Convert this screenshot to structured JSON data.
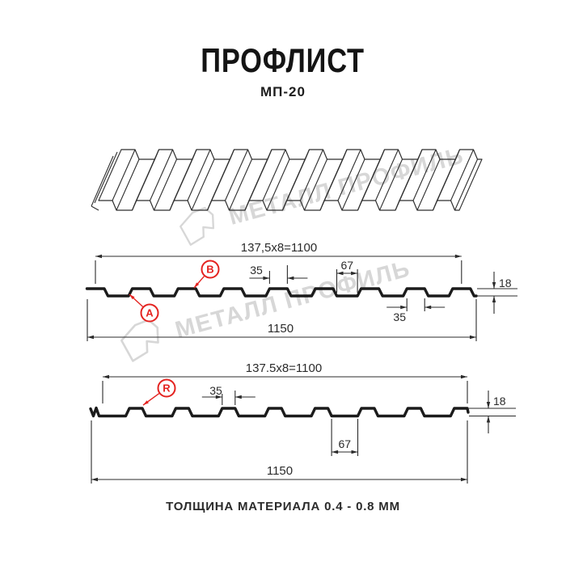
{
  "header": {
    "title": "ПРОФЛИСТ",
    "subtitle": "МП-20"
  },
  "watermark": {
    "brand_text": "МЕТАЛЛ ПРОФИЛЬ",
    "color": "#d7d7d7"
  },
  "diagram": {
    "profile_top": {
      "span_dim": "137,5x8=1100",
      "rib_top_dim": "35",
      "valley_dim": "67",
      "height_dim": "18",
      "rib_bottom_dim": "35",
      "total_width_dim": "1150",
      "label_a": "A",
      "label_b": "B"
    },
    "profile_bottom": {
      "span_dim": "137.5x8=1100",
      "rib_top_dim": "35",
      "valley_dim": "67",
      "height_dim": "18",
      "total_width_dim": "1150",
      "label_r": "R"
    }
  },
  "footer": {
    "material_thickness": "ТОЛЩИНА МАТЕРИАЛА 0.4 - 0.8 ММ"
  },
  "colors": {
    "line": "#1b1b1b",
    "dim": "#2b2b2b",
    "red": "#e42320",
    "sheet": "#2e2e2e"
  }
}
